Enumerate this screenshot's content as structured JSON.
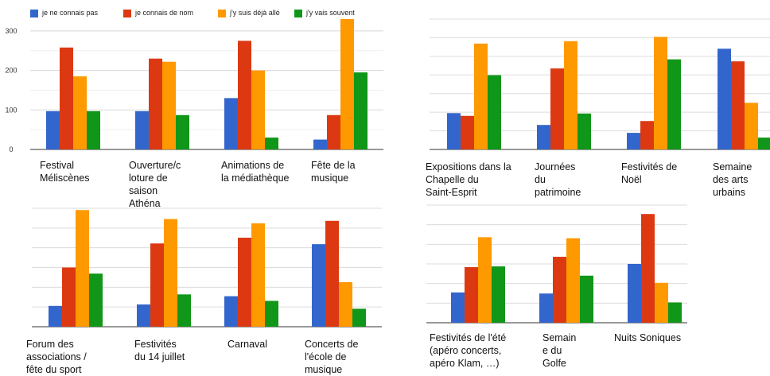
{
  "legend": [
    {
      "label": "je ne connais pas",
      "color": "#3366cc"
    },
    {
      "label": "je connais de nom",
      "color": "#dc3912"
    },
    {
      "label": "j'y suis déjà allé",
      "color": "#ff9900"
    },
    {
      "label": "j'y vais souvent",
      "color": "#109618"
    }
  ],
  "chart_data": [
    {
      "type": "bar",
      "y_ticks": [
        0,
        100,
        200,
        300
      ],
      "ylim": [
        0,
        330
      ],
      "grid": true,
      "legend_position": "top",
      "categories": [
        "Festival\nMéliscènes",
        "Ouverture/c\nloture de\nsaison\nAthéna",
        "Animations de\nla médiathèque",
        "Fête de la\nmusique"
      ],
      "series": [
        {
          "name": "je ne connais pas",
          "values": [
            97,
            97,
            130,
            25
          ]
        },
        {
          "name": "je connais de nom",
          "values": [
            258,
            230,
            275,
            87
          ]
        },
        {
          "name": "j'y suis déjà allé",
          "values": [
            185,
            222,
            200,
            330
          ]
        },
        {
          "name": "j'y vais souvent",
          "values": [
            97,
            87,
            30,
            195
          ]
        }
      ]
    },
    {
      "type": "bar",
      "ylim": [
        0,
        330
      ],
      "grid": true,
      "categories": [
        "Expositions dans la\nChapelle du\nSaint-Esprit",
        "Journées\ndu\npatrimoine",
        "Festivités de\nNoël",
        "Semaine\ndes arts\nurbains"
      ],
      "series": [
        {
          "name": "je ne connais pas",
          "values": [
            92,
            62,
            42,
            255
          ]
        },
        {
          "name": "je connais de nom",
          "values": [
            85,
            205,
            72,
            223
          ]
        },
        {
          "name": "j'y suis déjà allé",
          "values": [
            268,
            274,
            285,
            118
          ]
        },
        {
          "name": "j'y vais souvent",
          "values": [
            188,
            91,
            228,
            30
          ]
        }
      ]
    },
    {
      "type": "bar",
      "ylim": [
        0,
        330
      ],
      "grid": true,
      "categories": [
        "Forum des\nassociations /\nfête du sport",
        "Festivités\ndu 14 juillet",
        "Carnaval",
        "Concerts de\nl'école de\nmusique"
      ],
      "series": [
        {
          "name": "je ne connais pas",
          "values": [
            58,
            62,
            85,
            230
          ]
        },
        {
          "name": "je connais de nom",
          "values": [
            165,
            232,
            248,
            295
          ]
        },
        {
          "name": "j'y suis déjà allé",
          "values": [
            325,
            300,
            288,
            124
          ]
        },
        {
          "name": "j'y vais souvent",
          "values": [
            148,
            90,
            72,
            50
          ]
        }
      ]
    },
    {
      "type": "bar",
      "ylim": [
        0,
        330
      ],
      "grid": true,
      "categories": [
        "Festivités de l'été\n(apéro concerts,\napéro Klam, …)",
        "Semain\ne du\nGolfe",
        "Nuits Soniques"
      ],
      "series": [
        {
          "name": "je ne connais pas",
          "values": [
            85,
            82,
            165
          ]
        },
        {
          "name": "je connais de nom",
          "values": [
            156,
            185,
            305
          ]
        },
        {
          "name": "j'y suis déjà allé",
          "values": [
            240,
            237,
            112
          ]
        },
        {
          "name": "j'y vais souvent",
          "values": [
            158,
            132,
            57
          ]
        }
      ]
    }
  ]
}
